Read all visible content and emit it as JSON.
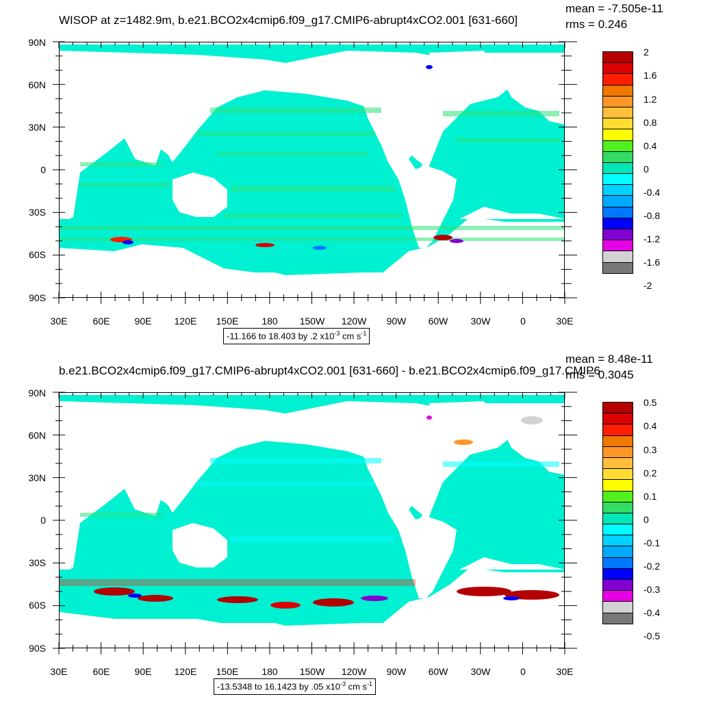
{
  "chart_data": [
    {
      "type": "heatmap",
      "title": "WISOP at z=1482.9m, b.e21.BCO2x4cmip6.f09_g17.CMIP6-abrupt4xCO2.001 [631-660]",
      "stats": {
        "mean": "mean = -7.505e-11",
        "rms": "rms = 0.246"
      },
      "projection": "cylindrical equidistant",
      "x_tick_labels": [
        "30E",
        "60E",
        "90E",
        "120E",
        "150E",
        "180",
        "150W",
        "120W",
        "90W",
        "60W",
        "30W",
        "0",
        "30E"
      ],
      "y_tick_labels": [
        "90N",
        "60N",
        "30N",
        "0",
        "30S",
        "60S",
        "90S"
      ],
      "xlim": [
        30,
        390
      ],
      "ylim": [
        -90,
        90
      ],
      "colorbar": {
        "labels": [
          "2",
          "1.6",
          "1.2",
          "0.8",
          "0.4",
          "0",
          "-0.4",
          "-0.8",
          "-1.2",
          "-1.6",
          "-2"
        ],
        "colors": [
          "#b40000",
          "#dc0000",
          "#ff1e00",
          "#f07800",
          "#ff9628",
          "#ffbe3c",
          "#ffdc32",
          "#ffff00",
          "#50f01e",
          "#32dc64",
          "#00e6b4",
          "#00ffff",
          "#00d2ff",
          "#00aaff",
          "#0078ff",
          "#0000ff",
          "#8200d2",
          "#e600e6",
          "#d2d2d2",
          "#787878"
        ]
      },
      "info": {
        "range_text": "-11.166 to 18.403 by .2 x10",
        "exp": "-3",
        "unit_text": " cm s",
        "unit_exp": "-1"
      }
    },
    {
      "type": "heatmap",
      "title": "b.e21.BCO2x4cmip6.f09_g17.CMIP6-abrupt4xCO2.001 [631-660] - b.e21.BCO2x4cmip6.f09_g17.CMIP6",
      "stats": {
        "mean": "mean = 8.48e-11",
        "rms": "rms = 0.3045"
      },
      "projection": "cylindrical equidistant",
      "x_tick_labels": [
        "30E",
        "60E",
        "90E",
        "120E",
        "150E",
        "180",
        "150W",
        "120W",
        "90W",
        "60W",
        "30W",
        "0",
        "30E"
      ],
      "y_tick_labels": [
        "90N",
        "60N",
        "30N",
        "0",
        "30S",
        "60S",
        "90S"
      ],
      "xlim": [
        30,
        390
      ],
      "ylim": [
        -90,
        90
      ],
      "colorbar": {
        "labels": [
          "0.5",
          "0.4",
          "0.3",
          "0.2",
          "0.1",
          "0",
          "-0.1",
          "-0.2",
          "-0.3",
          "-0.4",
          "-0.5"
        ],
        "colors": [
          "#b40000",
          "#dc0000",
          "#ff1e00",
          "#f07800",
          "#ff9628",
          "#ffbe3c",
          "#ffdc32",
          "#ffff00",
          "#50f01e",
          "#32dc64",
          "#00e6b4",
          "#00ffff",
          "#00d2ff",
          "#00aaff",
          "#0078ff",
          "#0000ff",
          "#8200d2",
          "#e600e6",
          "#d2d2d2",
          "#787878"
        ]
      },
      "info": {
        "range_text": "-13.5348 to 16.1423 by .05 x10",
        "exp": "-3",
        "unit_text": " cm s",
        "unit_exp": "-1"
      }
    }
  ],
  "ocean_colors": {
    "base": "#00f0d2",
    "band_a": "#2ee37a",
    "band_b": "#00ffff"
  }
}
